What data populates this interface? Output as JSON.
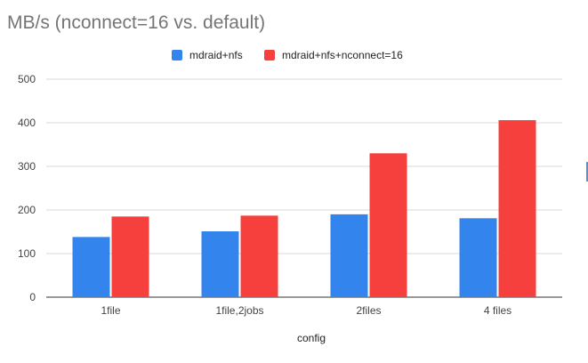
{
  "chart_data": {
    "type": "bar",
    "title": "MB/s (nconnect=16 vs. default)",
    "xlabel": "config",
    "ylabel": "",
    "categories": [
      "1file",
      "1file,2jobs",
      "2files",
      "4 files"
    ],
    "series": [
      {
        "name": "mdraid+nfs",
        "color": "#3384ec",
        "values": [
          138,
          151,
          190,
          181
        ]
      },
      {
        "name": "mdraid+nfs+nconnect=16",
        "color": "#f5403e",
        "values": [
          185,
          187,
          330,
          406
        ]
      }
    ],
    "ylim": [
      0,
      500
    ],
    "yticks": [
      0,
      100,
      200,
      300,
      400,
      500
    ],
    "grid": true,
    "legend_position": "top"
  }
}
